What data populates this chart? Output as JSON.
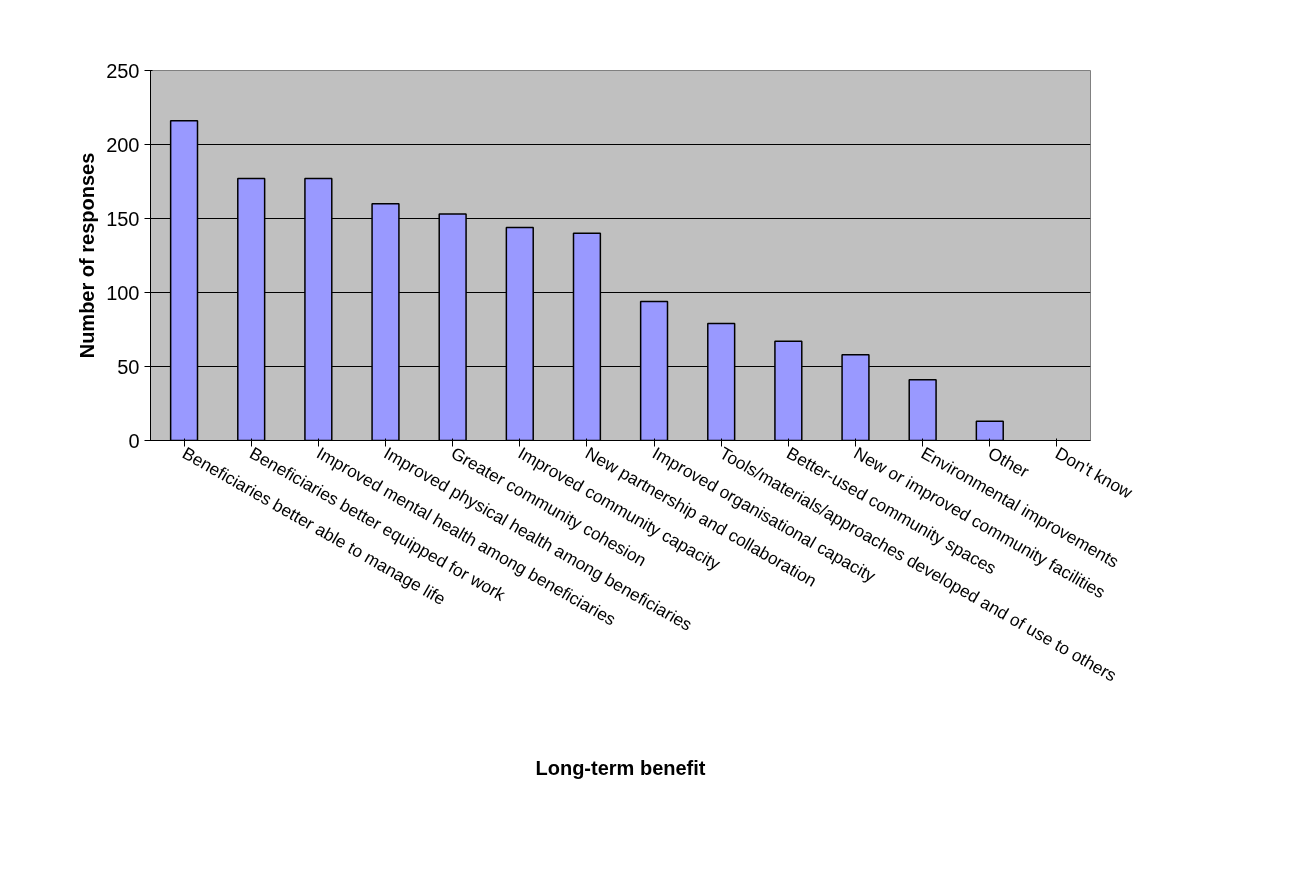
{
  "chart_data": {
    "type": "bar",
    "xlabel": "Long-term benefit",
    "ylabel": "Number of responses",
    "categories": [
      "Beneficiaries better able to manage life",
      "Beneficiaries better equipped for work",
      "Improved mental health among beneficiaries",
      "Improved physical health among beneficiaries",
      "Greater community cohesion",
      "Improved community capacity",
      "New partnership and collaboration",
      "Improved organisational capacity",
      "Tools/materials/approaches developed and of use to others",
      "Better-used community spaces",
      "New or improved community facilities",
      "Environmental improvements",
      "Other",
      "Don't know"
    ],
    "values": [
      216,
      177,
      177,
      160,
      153,
      144,
      140,
      94,
      79,
      67,
      58,
      41,
      13,
      0
    ],
    "color": "#9999ff",
    "ylim": [
      0,
      250
    ],
    "yticks": [
      0,
      50,
      100,
      150,
      200,
      250
    ],
    "grid": "y"
  }
}
